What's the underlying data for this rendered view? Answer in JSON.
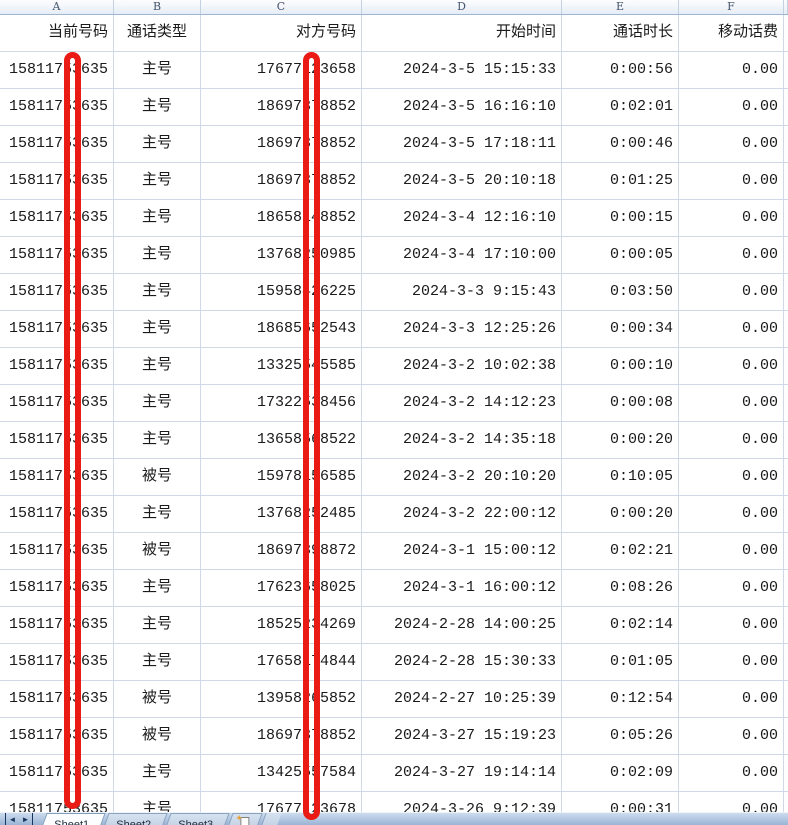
{
  "sheet": {
    "column_letters": [
      "A",
      "B",
      "C",
      "D",
      "E",
      "F"
    ],
    "headers": {
      "a": "当前号码",
      "b": "通话类型",
      "c": "对方号码",
      "d": "开始时间",
      "e": "通话时长",
      "f": "移动话费"
    },
    "rows": [
      {
        "a": "15811753635",
        "b": "主号",
        "c": "17677123658",
        "d": "2024-3-5 15:15:33",
        "e": "0:00:56",
        "f": "0.00"
      },
      {
        "a": "15811753635",
        "b": "主号",
        "c": "18697378852",
        "d": "2024-3-5 16:16:10",
        "e": "0:02:01",
        "f": "0.00"
      },
      {
        "a": "15811753635",
        "b": "主号",
        "c": "18697378852",
        "d": "2024-3-5 17:18:11",
        "e": "0:00:46",
        "f": "0.00"
      },
      {
        "a": "15811753635",
        "b": "主号",
        "c": "18697378852",
        "d": "2024-3-5 20:10:18",
        "e": "0:01:25",
        "f": "0.00"
      },
      {
        "a": "15811753635",
        "b": "主号",
        "c": "18658148852",
        "d": "2024-3-4 12:16:10",
        "e": "0:00:15",
        "f": "0.00"
      },
      {
        "a": "15811753635",
        "b": "主号",
        "c": "13768250985",
        "d": "2024-3-4 17:10:00",
        "e": "0:00:05",
        "f": "0.00"
      },
      {
        "a": "15811753635",
        "b": "主号",
        "c": "15958426225",
        "d": "2024-3-3 9:15:43",
        "e": "0:03:50",
        "f": "0.00"
      },
      {
        "a": "15811753635",
        "b": "主号",
        "c": "18685652543",
        "d": "2024-3-3 12:25:26",
        "e": "0:00:34",
        "f": "0.00"
      },
      {
        "a": "15811753635",
        "b": "主号",
        "c": "13325545585",
        "d": "2024-3-2 10:02:38",
        "e": "0:00:10",
        "f": "0.00"
      },
      {
        "a": "15811753635",
        "b": "主号",
        "c": "17322538456",
        "d": "2024-3-2 14:12:23",
        "e": "0:00:08",
        "f": "0.00"
      },
      {
        "a": "15811753635",
        "b": "主号",
        "c": "13658568522",
        "d": "2024-3-2 14:35:18",
        "e": "0:00:20",
        "f": "0.00"
      },
      {
        "a": "15811753635",
        "b": "被号",
        "c": "15978156585",
        "d": "2024-3-2 20:10:20",
        "e": "0:10:05",
        "f": "0.00"
      },
      {
        "a": "15811753635",
        "b": "主号",
        "c": "13768252485",
        "d": "2024-3-2 22:00:12",
        "e": "0:00:20",
        "f": "0.00"
      },
      {
        "a": "15811753635",
        "b": "被号",
        "c": "18697398872",
        "d": "2024-3-1 15:00:12",
        "e": "0:02:21",
        "f": "0.00"
      },
      {
        "a": "15811753635",
        "b": "主号",
        "c": "17623658025",
        "d": "2024-3-1 16:00:12",
        "e": "0:08:26",
        "f": "0.00"
      },
      {
        "a": "15811753635",
        "b": "主号",
        "c": "18525234269",
        "d": "2024-2-28 14:00:25",
        "e": "0:02:14",
        "f": "0.00"
      },
      {
        "a": "15811753635",
        "b": "主号",
        "c": "17658174844",
        "d": "2024-2-28 15:30:33",
        "e": "0:01:05",
        "f": "0.00"
      },
      {
        "a": "15811753635",
        "b": "被号",
        "c": "13958265852",
        "d": "2024-2-27 10:25:39",
        "e": "0:12:54",
        "f": "0.00"
      },
      {
        "a": "15811753635",
        "b": "被号",
        "c": "18697378852",
        "d": "2024-3-27 15:19:23",
        "e": "0:05:26",
        "f": "0.00"
      },
      {
        "a": "15811753635",
        "b": "主号",
        "c": "13425557584",
        "d": "2024-3-27 19:14:14",
        "e": "0:02:09",
        "f": "0.00"
      },
      {
        "a": "15811753635",
        "b": "主号",
        "c": "17677123678",
        "d": "2024-3-26 9:12:39",
        "e": "0:00:31",
        "f": "0.00"
      }
    ]
  },
  "tabbar": {
    "nav_prev_glyph": "◄",
    "nav_next_glyph": "►",
    "tabs": [
      "Sheet1",
      "Sheet2",
      "Sheet3"
    ],
    "active_tab": "Sheet1",
    "insert_spark_glyph": "✦"
  },
  "colors": {
    "redaction_red": "#ea1a15",
    "gridline": "#d0d7e5",
    "header_border": "#9eb6ce",
    "tabbar_blue": "#9ab4d5"
  }
}
